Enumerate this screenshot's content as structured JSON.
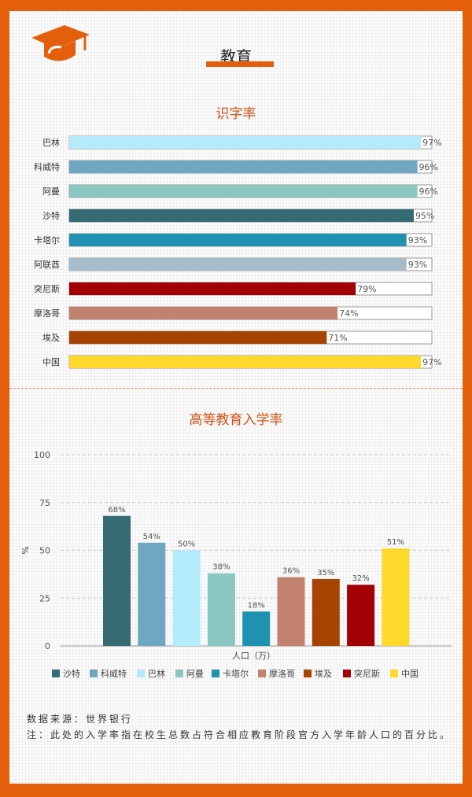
{
  "page": {
    "header_title": "教育",
    "source": "数据来源：世界银行",
    "note": "注：此处的入学率指在校生总数占符合相应教育阶段官方入学年龄人口的百分比。"
  },
  "chart_data": [
    {
      "type": "bar",
      "orientation": "horizontal",
      "title": "识字率",
      "categories": [
        "巴林",
        "科威特",
        "阿曼",
        "沙特",
        "卡塔尔",
        "阿联酋",
        "突尼斯",
        "摩洛哥",
        "埃及",
        "中国"
      ],
      "values": [
        97,
        96,
        96,
        95,
        93,
        93,
        79,
        74,
        71,
        97
      ],
      "value_labels": [
        "97%",
        "96%",
        "96%",
        "95%",
        "93%",
        "93%",
        "79%",
        "74%",
        "71%",
        "97%"
      ],
      "colors": [
        "#b3ebfa",
        "#6fa6c2",
        "#8ac7c1",
        "#356b72",
        "#2091b0",
        "#a7bccb",
        "#a30006",
        "#c38270",
        "#a74404",
        "#fcd92a"
      ],
      "xlim": [
        0,
        100
      ]
    },
    {
      "type": "bar",
      "title": "高等教育入学率",
      "categories": [
        "沙特",
        "科威特",
        "巴林",
        "阿曼",
        "卡塔尔",
        "摩洛哥",
        "埃及",
        "突尼斯",
        "中国"
      ],
      "values": [
        68,
        54,
        50,
        38,
        18,
        36,
        35,
        32,
        51
      ],
      "value_labels": [
        "68%",
        "54%",
        "50%",
        "38%",
        "18%",
        "36%",
        "35%",
        "32%",
        "51%"
      ],
      "colors": [
        "#356b72",
        "#6fa6c2",
        "#b3ebfa",
        "#8ac7c1",
        "#2091b0",
        "#c38270",
        "#a74404",
        "#a30006",
        "#fcd92a"
      ],
      "ylim": [
        0,
        100
      ],
      "yticks": [
        "0",
        "25",
        "50",
        "75",
        "100"
      ],
      "ylabel": "%",
      "xlabel": "人口（万）",
      "legend": [
        "沙特",
        "科威特",
        "巴林",
        "阿曼",
        "卡塔尔",
        "摩洛哥",
        "埃及",
        "突尼斯",
        "中国"
      ],
      "legend_position": "bottom",
      "grid": true
    }
  ]
}
